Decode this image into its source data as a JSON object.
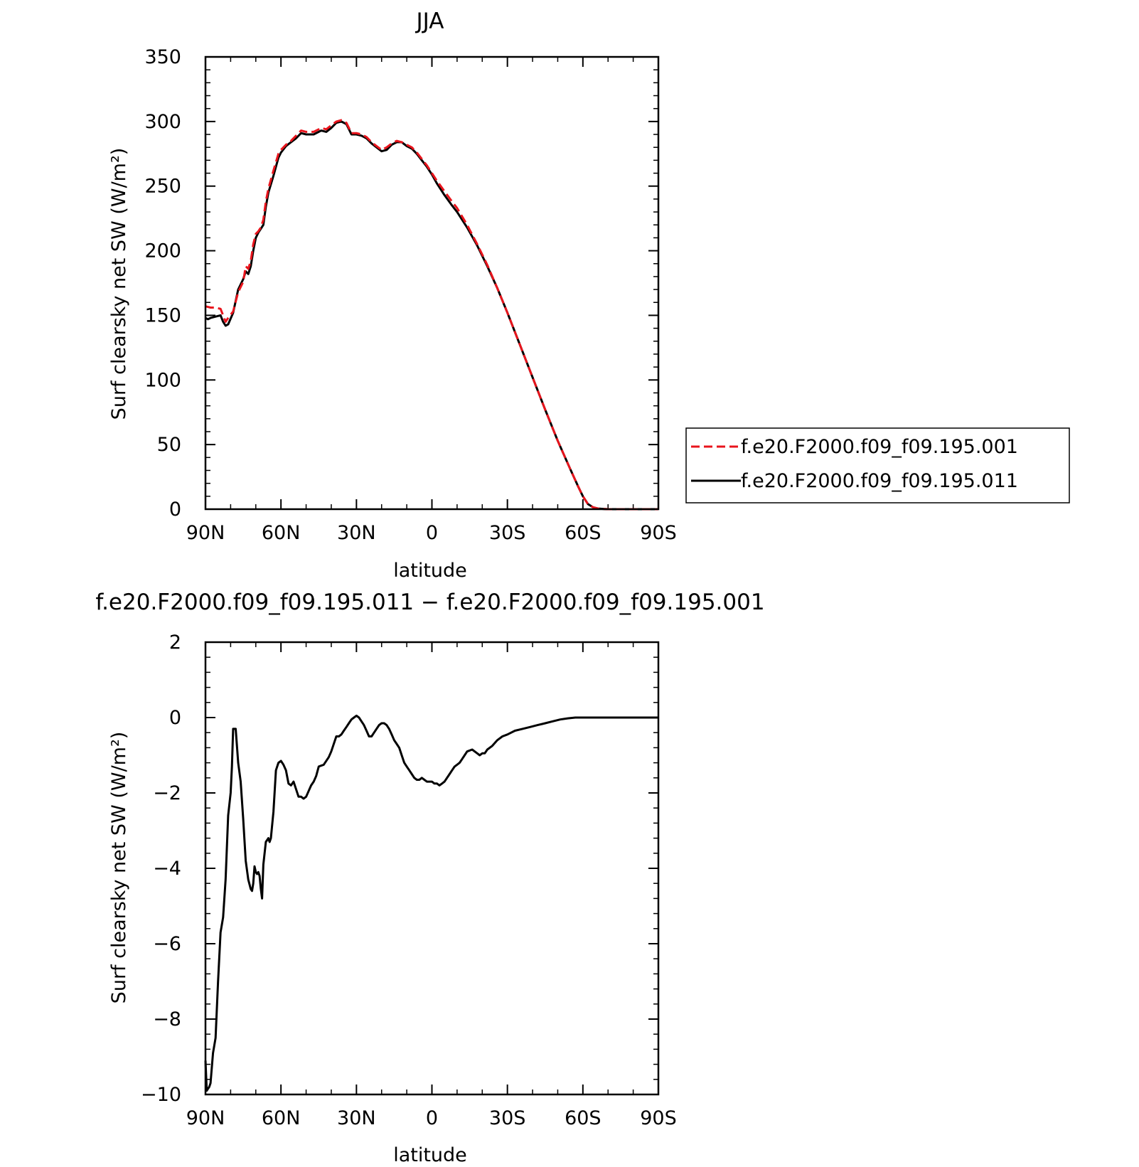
{
  "chart_data": [
    {
      "type": "line",
      "title": "JJA",
      "xlabel": "latitude",
      "ylabel": "Surf clearsky net SW (W/m²)",
      "xlim": [
        90,
        -90
      ],
      "ylim": [
        0,
        350
      ],
      "x_ticks": [
        90,
        60,
        30,
        0,
        -30,
        -60,
        -90
      ],
      "x_tick_labels": [
        "90N",
        "60N",
        "30N",
        "0",
        "30S",
        "60S",
        "90S"
      ],
      "y_ticks": [
        0,
        50,
        100,
        150,
        200,
        250,
        300,
        350
      ],
      "y_tick_labels": [
        "0",
        "50",
        "100",
        "150",
        "200",
        "250",
        "300",
        "350"
      ],
      "legend": "right",
      "series": [
        {
          "name": "f.e20.F2000.f09_f09.195.001",
          "color": "#e8141c",
          "style": "dashed",
          "x": [
            90,
            88,
            86,
            84,
            83,
            82,
            81,
            79,
            77,
            75,
            74,
            73,
            72,
            71,
            70,
            69,
            68,
            67,
            66,
            65,
            63,
            61,
            60,
            58,
            56,
            54,
            52,
            50,
            48,
            47,
            45,
            44,
            42,
            40,
            38,
            36,
            34,
            32,
            30,
            28,
            26,
            24,
            22,
            20,
            18,
            16,
            14,
            12,
            10,
            8,
            6,
            4,
            2,
            0,
            -2,
            -5,
            -8,
            -10,
            -14,
            -18,
            -22,
            -26,
            -30,
            -35,
            -40,
            -45,
            -50,
            -55,
            -58,
            -60,
            -62,
            -64,
            -66,
            -68,
            -70,
            -75,
            -80,
            -90
          ],
          "values": [
            157,
            156,
            156,
            155,
            150,
            145,
            148,
            153,
            168,
            176,
            188,
            186,
            192,
            205,
            213,
            215,
            218,
            224,
            238,
            248,
            262,
            275,
            278,
            282,
            285,
            289,
            293,
            292,
            292,
            292,
            294,
            295,
            294,
            297,
            300,
            301,
            299,
            291,
            291,
            290,
            288,
            284,
            281,
            278,
            280,
            283,
            285,
            284,
            282,
            280,
            276,
            271,
            266,
            260,
            254,
            246,
            238,
            233,
            220,
            205,
            189,
            171,
            152,
            127,
            102,
            77,
            53,
            31,
            18,
            10,
            4,
            1.5,
            0.5,
            0.2,
            0,
            0,
            0,
            0
          ]
        },
        {
          "name": "f.e20.F2000.f09_f09.195.011",
          "color": "#000000",
          "style": "solid",
          "x": [
            90,
            89,
            88,
            86,
            84,
            83,
            82,
            81,
            79,
            77,
            75,
            74,
            73,
            72,
            71,
            70,
            69,
            68,
            67,
            66,
            65,
            63,
            61,
            60,
            58,
            56,
            54,
            52,
            50,
            48,
            47,
            45,
            44,
            42,
            40,
            38,
            36,
            34,
            32,
            30,
            28,
            26,
            24,
            22,
            20,
            18,
            16,
            14,
            12,
            10,
            8,
            6,
            4,
            2,
            0,
            -2,
            -5,
            -8,
            -10,
            -14,
            -18,
            -22,
            -26,
            -30,
            -35,
            -40,
            -45,
            -50,
            -55,
            -58,
            -60,
            -62,
            -64,
            -66,
            -68,
            -70,
            -75,
            -80,
            -90
          ],
          "values": [
            148,
            147,
            148,
            149,
            150,
            145,
            142,
            143,
            152,
            170,
            178,
            184,
            182,
            188,
            200,
            210,
            214,
            217,
            220,
            234,
            245,
            258,
            272,
            276,
            281,
            284,
            287,
            291,
            290,
            290,
            290,
            292,
            293,
            292,
            295,
            299,
            300,
            298,
            290,
            290,
            289,
            287,
            283,
            280,
            277,
            278,
            282,
            284,
            284,
            281,
            279,
            275,
            270,
            265,
            259,
            252,
            243,
            235,
            230,
            218,
            204,
            188,
            171,
            152,
            127,
            102,
            77,
            53,
            31,
            18,
            10,
            4,
            1.5,
            0.5,
            0.2,
            0,
            0,
            0,
            0
          ]
        }
      ]
    },
    {
      "type": "line",
      "title": "f.e20.F2000.f09_f09.195.011 − f.e20.F2000.f09_f09.195.001",
      "xlabel": "latitude",
      "ylabel": "Surf clearsky net SW (W/m²)",
      "xlim": [
        90,
        -90
      ],
      "ylim": [
        -10,
        2
      ],
      "x_ticks": [
        90,
        60,
        30,
        0,
        -30,
        -60,
        -90
      ],
      "x_tick_labels": [
        "90N",
        "60N",
        "30N",
        "0",
        "30S",
        "60S",
        "90S"
      ],
      "y_ticks": [
        -10,
        -8,
        -6,
        -4,
        -2,
        0,
        2
      ],
      "y_tick_labels": [
        "−10",
        "−8",
        "−6",
        "−4",
        "−2",
        "0",
        "2"
      ],
      "series": [
        {
          "color": "#000000",
          "style": "solid",
          "x": [
            90,
            89.5,
            89,
            88.5,
            88,
            87,
            86,
            85,
            84,
            83,
            82,
            81,
            80,
            79.5,
            79,
            78.5,
            78,
            77,
            76,
            75,
            74,
            73,
            72,
            71.5,
            71,
            70.5,
            70,
            69.5,
            69,
            68.5,
            68,
            67.5,
            67,
            66,
            65,
            64.5,
            64,
            63,
            62,
            61,
            60,
            59,
            58,
            57,
            56,
            55,
            54,
            53,
            52,
            51,
            50,
            49,
            48,
            47,
            46,
            45,
            43,
            41,
            40,
            38,
            37,
            36,
            35,
            34,
            33,
            32,
            31,
            30,
            29,
            28,
            27,
            26,
            25,
            24,
            23,
            22,
            21,
            20,
            19,
            18,
            17,
            16,
            15,
            14,
            13,
            12,
            11,
            10,
            9,
            8,
            7,
            6,
            5,
            4,
            3,
            2,
            1,
            0,
            -1,
            -2,
            -3,
            -4,
            -5,
            -7,
            -8,
            -9,
            -10,
            -11,
            -12,
            -13,
            -14,
            -16,
            -18,
            -19,
            -20,
            -21,
            -22,
            -24,
            -26,
            -28,
            -30,
            -33,
            -36,
            -39,
            -42,
            -45,
            -48,
            -51,
            -54,
            -57,
            -60,
            -63,
            -66,
            -70,
            -75,
            -80,
            -90
          ],
          "values": [
            -9.1,
            -9.9,
            -9.85,
            -9.8,
            -9.7,
            -8.9,
            -8.5,
            -7.0,
            -5.7,
            -5.3,
            -4.3,
            -2.6,
            -2.0,
            -1.3,
            -0.3,
            -0.3,
            -0.3,
            -1.2,
            -1.7,
            -2.7,
            -3.8,
            -4.3,
            -4.55,
            -4.6,
            -4.4,
            -3.95,
            -4.1,
            -4.15,
            -4.1,
            -4.2,
            -4.55,
            -4.8,
            -3.9,
            -3.3,
            -3.2,
            -3.3,
            -3.2,
            -2.5,
            -1.4,
            -1.2,
            -1.15,
            -1.25,
            -1.4,
            -1.75,
            -1.8,
            -1.7,
            -1.9,
            -2.1,
            -2.1,
            -2.15,
            -2.1,
            -1.95,
            -1.8,
            -1.7,
            -1.55,
            -1.3,
            -1.25,
            -1.05,
            -0.9,
            -0.5,
            -0.5,
            -0.45,
            -0.35,
            -0.25,
            -0.15,
            -0.05,
            0.0,
            0.05,
            0.0,
            -0.1,
            -0.2,
            -0.35,
            -0.5,
            -0.5,
            -0.4,
            -0.3,
            -0.2,
            -0.15,
            -0.15,
            -0.2,
            -0.3,
            -0.45,
            -0.6,
            -0.7,
            -0.8,
            -1.0,
            -1.2,
            -1.3,
            -1.4,
            -1.5,
            -1.6,
            -1.65,
            -1.65,
            -1.6,
            -1.65,
            -1.7,
            -1.7,
            -1.7,
            -1.75,
            -1.75,
            -1.8,
            -1.75,
            -1.7,
            -1.5,
            -1.4,
            -1.3,
            -1.25,
            -1.2,
            -1.1,
            -1.0,
            -0.9,
            -0.85,
            -0.95,
            -1.0,
            -0.95,
            -0.95,
            -0.85,
            -0.75,
            -0.6,
            -0.5,
            -0.45,
            -0.35,
            -0.3,
            -0.25,
            -0.2,
            -0.15,
            -0.1,
            -0.05,
            -0.02,
            0.0,
            0.0,
            0.0,
            0.0,
            0.0,
            0.0,
            0.0,
            0.0
          ]
        }
      ]
    }
  ]
}
